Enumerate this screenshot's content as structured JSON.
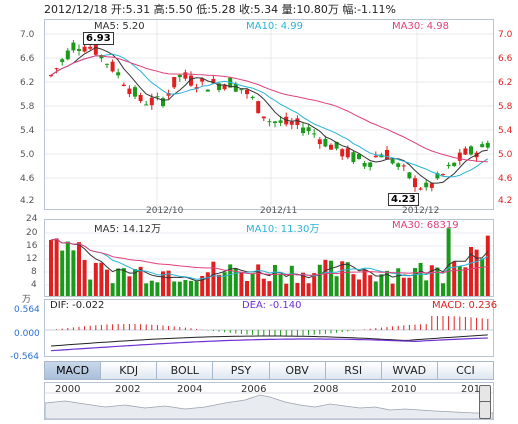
{
  "header": {
    "summary": "2012/12/18 开:5.31 高:5.50 低:5.28 收:5.34 量:10.80万 幅:-1.11%"
  },
  "price_panel": {
    "ma5": "MA5: 5.20",
    "ma10": "MA10: 4.99",
    "ma30": "MA30: 4.98",
    "y_ticks": [
      "7.0",
      "6.6",
      "6.2",
      "5.8",
      "5.4",
      "5.0",
      "4.6",
      "4.2"
    ],
    "x_ticks": [
      "2012/10",
      "2012/11",
      "2012/12"
    ],
    "high_marker": "6.93",
    "low_marker": "4.23"
  },
  "volume_panel": {
    "ma5": "MA5: 14.12万",
    "ma10": "MA10: 11.30万",
    "ma30": "MA30: 68319",
    "y_ticks": [
      "24",
      "20",
      "16",
      "12",
      "8",
      "4"
    ],
    "unit": "万"
  },
  "macd_panel": {
    "dif": "DIF: -0.022",
    "dea": "DEA: -0.140",
    "macd": "MACD: 0.236",
    "y_ticks": [
      "0.564",
      "0.000",
      "-0.564"
    ]
  },
  "tabs": [
    "MACD",
    "KDJ",
    "BOLL",
    "PSY",
    "OBV",
    "RSI",
    "WVAD",
    "CCI"
  ],
  "active_tab": "MACD",
  "timeline": {
    "years": [
      "2000",
      "2002",
      "2004",
      "2006",
      "2008",
      "2010",
      "201"
    ]
  },
  "colors": {
    "up": "#e02020",
    "down": "#1a9a1a",
    "ma5": "#333333",
    "ma10": "#29b3d6",
    "ma30": "#e0407a",
    "dif": "#222222",
    "dea": "#7030d0"
  }
}
